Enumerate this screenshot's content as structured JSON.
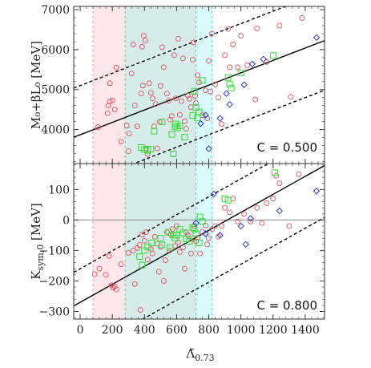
{
  "chart_data": {
    "type": "scatter",
    "x_axis": {
      "label": "Λ̃",
      "label_sub": "0.73",
      "lim": [
        -40,
        1520
      ],
      "ticks": [
        0,
        200,
        400,
        600,
        800,
        1000,
        1200,
        1400
      ]
    },
    "colors": {
      "red": "#e8505b",
      "green": "#33dd33",
      "blue": "#2d35d6",
      "pink_band": "#fde7ea",
      "teal_band": "#d6ecea",
      "cyan_band": "#d9f9fb"
    },
    "bands": [
      {
        "from": 80,
        "to": 720,
        "color": "pink"
      },
      {
        "from": 280,
        "to": 720,
        "color": "teal"
      },
      {
        "from": 720,
        "to": 820,
        "color": "cyan"
      }
    ],
    "panels": [
      {
        "ylabel": "M₀+βL₀ [MeV]",
        "ylim": [
          3150,
          7080
        ],
        "yticks": [
          4000,
          5000,
          6000,
          7000
        ],
        "annotation": "C = 0.500",
        "fit": {
          "intercept": 3870,
          "slope": 1.55
        },
        "band": {
          "lower_intercept": 2630,
          "upper_intercept": 5100
        },
        "series": [
          {
            "name": "",
            "marker": "circle",
            "color": "red",
            "points": [
              [
                110,
                4060
              ],
              [
                170,
                4410
              ],
              [
                175,
                4600
              ],
              [
                185,
                5160
              ],
              [
                185,
                4700
              ],
              [
                200,
                4730
              ],
              [
                215,
                4500
              ],
              [
                225,
                5550
              ],
              [
                255,
                3700
              ],
              [
                290,
                4100
              ],
              [
                300,
                3460
              ],
              [
                305,
                3900
              ],
              [
                320,
                5400
              ],
              [
                330,
                6130
              ],
              [
                340,
                4600
              ],
              [
                355,
                4080
              ],
              [
                380,
                4900
              ],
              [
                385,
                6070
              ],
              [
                390,
                5100
              ],
              [
                395,
                6350
              ],
              [
                405,
                6230
              ],
              [
                410,
                3530
              ],
              [
                420,
                3390
              ],
              [
                430,
                5160
              ],
              [
                440,
                4920
              ],
              [
                450,
                4780
              ],
              [
                460,
                4080
              ],
              [
                470,
                4640
              ],
              [
                480,
                3530
              ],
              [
                495,
                4190
              ],
              [
                500,
                5090
              ],
              [
                510,
                6060
              ],
              [
                520,
                5560
              ],
              [
                540,
                4900
              ],
              [
                550,
                4720
              ],
              [
                560,
                4250
              ],
              [
                570,
                4340
              ],
              [
                585,
                5860
              ],
              [
                595,
                4780
              ],
              [
                610,
                6270
              ],
              [
                620,
                4370
              ],
              [
                630,
                4710
              ],
              [
                640,
                5780
              ],
              [
                650,
                4210
              ],
              [
                660,
                4020
              ],
              [
                670,
                4850
              ],
              [
                680,
                4770
              ],
              [
                690,
                4560
              ],
              [
                700,
                5750
              ],
              [
                705,
                6180
              ],
              [
                715,
                4840
              ],
              [
                720,
                4660
              ],
              [
                730,
                5360
              ],
              [
                740,
                5180
              ],
              [
                760,
                4360
              ],
              [
                780,
                4980
              ],
              [
                790,
                4280
              ],
              [
                800,
                5720
              ],
              [
                810,
                4950
              ],
              [
                820,
                6400
              ],
              [
                840,
                5130
              ],
              [
                860,
                4800
              ],
              [
                880,
                4140
              ],
              [
                900,
                5860
              ],
              [
                920,
                6520
              ],
              [
                930,
                5560
              ],
              [
                950,
                6130
              ],
              [
                980,
                5560
              ],
              [
                1000,
                6350
              ],
              [
                1040,
                5610
              ],
              [
                1090,
                4750
              ],
              [
                1100,
                6530
              ],
              [
                1160,
                5690
              ],
              [
                1240,
                6600
              ],
              [
                1310,
                4820
              ],
              [
                1380,
                6790
              ]
            ]
          },
          {
            "name": "",
            "marker": "square",
            "color": "green",
            "points": [
              [
                380,
                3550
              ],
              [
                400,
                3500
              ],
              [
                420,
                3480
              ],
              [
                440,
                3510
              ],
              [
                460,
                3960
              ],
              [
                510,
                4190
              ],
              [
                570,
                3880
              ],
              [
                580,
                3390
              ],
              [
                590,
                4080
              ],
              [
                595,
                4140
              ],
              [
                605,
                4040
              ],
              [
                620,
                4090
              ],
              [
                650,
                3810
              ],
              [
                700,
                4350
              ],
              [
                710,
                4960
              ],
              [
                720,
                4550
              ],
              [
                730,
                4290
              ],
              [
                740,
                4440
              ],
              [
                760,
                5230
              ],
              [
                920,
                5300
              ],
              [
                930,
                5130
              ],
              [
                940,
                5040
              ],
              [
                1000,
                5420
              ],
              [
                1200,
                5850
              ]
            ]
          },
          {
            "name": "",
            "marker": "diamond",
            "color": "blue",
            "points": [
              [
                750,
                4150
              ],
              [
                780,
                4360
              ],
              [
                800,
                3520
              ],
              [
                870,
                4280
              ],
              [
                910,
                4900
              ],
              [
                930,
                4630
              ],
              [
                1020,
                5120
              ],
              [
                1070,
                5640
              ],
              [
                1140,
                5760
              ],
              [
                1470,
                6300
              ]
            ]
          }
        ]
      },
      {
        "ylabel": "K_sym,0 [MeV]",
        "ylabel_main": "K",
        "ylabel_sub": "sym,0",
        "ylabel_unit": " [MeV]",
        "ylim": [
          -325,
          185
        ],
        "yticks": [
          -300,
          -200,
          -100,
          0,
          100
        ],
        "annotation": "C = 0.800",
        "zero_line": 0,
        "fit": {
          "intercept": -270,
          "slope": 0.295
        },
        "band": {
          "lower_intercept": -440,
          "upper_intercept": -160
        },
        "series": [
          {
            "name": "",
            "marker": "circle",
            "color": "red",
            "points": [
              [
                90,
                -178
              ],
              [
                120,
                -160
              ],
              [
                160,
                -180
              ],
              [
                180,
                -118
              ],
              [
                195,
                -214
              ],
              [
                205,
                -222
              ],
              [
                215,
                -218
              ],
              [
                225,
                -228
              ],
              [
                255,
                -145
              ],
              [
                300,
                -108
              ],
              [
                330,
                -100
              ],
              [
                340,
                -210
              ],
              [
                355,
                -92
              ],
              [
                370,
                -82
              ],
              [
                375,
                -295
              ],
              [
                385,
                -48
              ],
              [
                400,
                -68
              ],
              [
                410,
                -40
              ],
              [
                420,
                -130
              ],
              [
                440,
                -95
              ],
              [
                450,
                -110
              ],
              [
                465,
                -55
              ],
              [
                480,
                -78
              ],
              [
                490,
                -170
              ],
              [
                500,
                -88
              ],
              [
                520,
                -200
              ],
              [
                530,
                -132
              ],
              [
                540,
                -40
              ],
              [
                555,
                -100
              ],
              [
                565,
                -48
              ],
              [
                575,
                -30
              ],
              [
                590,
                -85
              ],
              [
                600,
                -20
              ],
              [
                610,
                -73
              ],
              [
                620,
                -105
              ],
              [
                640,
                -90
              ],
              [
                650,
                -160
              ],
              [
                660,
                -40
              ],
              [
                670,
                -50
              ],
              [
                690,
                -110
              ],
              [
                700,
                -62
              ],
              [
                710,
                -20
              ],
              [
                720,
                -70
              ],
              [
                730,
                -58
              ],
              [
                745,
                -110
              ],
              [
                760,
                -40
              ],
              [
                780,
                -18
              ],
              [
                790,
                -80
              ],
              [
                800,
                -60
              ],
              [
                820,
                -30
              ],
              [
                840,
                -20
              ],
              [
                860,
                -55
              ],
              [
                880,
                -20
              ],
              [
                900,
                40
              ],
              [
                930,
                25
              ],
              [
                950,
                70
              ],
              [
                980,
                -5
              ],
              [
                1020,
                20
              ],
              [
                1060,
                -5
              ],
              [
                1100,
                40
              ],
              [
                1130,
                -10
              ],
              [
                1160,
                55
              ],
              [
                1200,
                70
              ],
              [
                1220,
                145
              ],
              [
                1240,
                120
              ],
              [
                1300,
                -20
              ],
              [
                1360,
                150
              ]
            ]
          },
          {
            "name": "",
            "marker": "square",
            "color": "green",
            "points": [
              [
                370,
                -120
              ],
              [
                385,
                -148
              ],
              [
                400,
                -100
              ],
              [
                420,
                -88
              ],
              [
                445,
                -75
              ],
              [
                500,
                -60
              ],
              [
                510,
                -82
              ],
              [
                550,
                -40
              ],
              [
                560,
                -90
              ],
              [
                580,
                -50
              ],
              [
                590,
                -60
              ],
              [
                600,
                -50
              ],
              [
                620,
                -30
              ],
              [
                640,
                -42
              ],
              [
                660,
                -62
              ],
              [
                680,
                -70
              ],
              [
                700,
                -25
              ],
              [
                710,
                -30
              ],
              [
                720,
                -45
              ],
              [
                740,
                -75
              ],
              [
                745,
                10
              ],
              [
                760,
                -5
              ],
              [
                900,
                70
              ],
              [
                920,
                65
              ],
              [
                1210,
                155
              ]
            ]
          },
          {
            "name": "",
            "marker": "diamond",
            "color": "blue",
            "points": [
              [
                720,
                -10
              ],
              [
                780,
                -45
              ],
              [
                830,
                85
              ],
              [
                870,
                -50
              ],
              [
                1000,
                -20
              ],
              [
                1030,
                -80
              ],
              [
                1060,
                5
              ],
              [
                1240,
                30
              ],
              [
                1470,
                95
              ]
            ]
          }
        ]
      }
    ]
  }
}
